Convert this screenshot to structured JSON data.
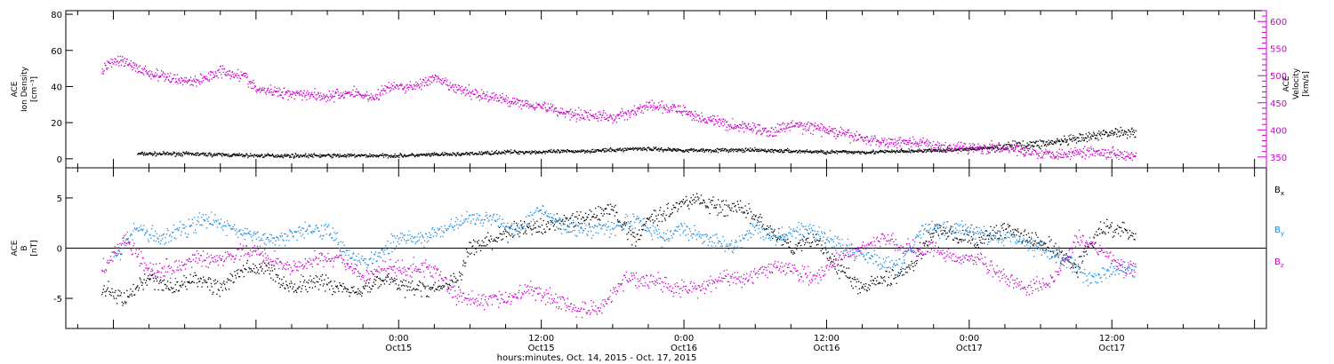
{
  "chart_data": [
    {
      "type": "scatter",
      "panel": "top",
      "ylabel_left": [
        "ACE",
        "Ion Density",
        "[cm⁻³]"
      ],
      "ylabel_right": [
        "ACE",
        "Velocity",
        "[km/s]"
      ],
      "ylim_left": [
        -5,
        82
      ],
      "yticks_left": [
        0,
        20,
        40,
        60,
        80
      ],
      "ylim_right": [
        330,
        620
      ],
      "yticks_right": [
        350,
        400,
        450,
        500,
        550,
        600
      ],
      "right_axis_color": "#cc00cc",
      "series": [
        {
          "axis": "left",
          "color": "#000000",
          "points": [
            [
              -22,
              3
            ],
            [
              -18,
              3
            ],
            [
              -12,
              2
            ],
            [
              -6,
              2
            ],
            [
              0,
              2
            ],
            [
              6,
              3
            ],
            [
              9,
              4
            ],
            [
              12,
              4
            ],
            [
              18,
              5
            ],
            [
              20,
              6
            ],
            [
              24,
              5
            ],
            [
              30,
              5
            ],
            [
              36,
              4
            ],
            [
              40,
              4
            ],
            [
              46,
              5
            ],
            [
              49,
              6
            ],
            [
              53,
              8
            ],
            [
              56,
              10
            ],
            [
              58,
              12
            ],
            [
              60,
              15
            ],
            [
              62,
              15
            ]
          ]
        },
        {
          "axis": "right",
          "color": "#cc00cc",
          "points": [
            [
              -25,
              510
            ],
            [
              -24,
              530
            ],
            [
              -23,
              525
            ],
            [
              -21,
              505
            ],
            [
              -19,
              495
            ],
            [
              -17,
              490
            ],
            [
              -15,
              510
            ],
            [
              -13,
              500
            ],
            [
              -12,
              475
            ],
            [
              -10,
              470
            ],
            [
              -8,
              468
            ],
            [
              -6,
              462
            ],
            [
              -4,
              470
            ],
            [
              -2,
              460
            ],
            [
              -1,
              480
            ],
            [
              1,
              480
            ],
            [
              3,
              495
            ],
            [
              5,
              475
            ],
            [
              8,
              460
            ],
            [
              10,
              452
            ],
            [
              12,
              445
            ],
            [
              14,
              432
            ],
            [
              16,
              428
            ],
            [
              18,
              423
            ],
            [
              19,
              430
            ],
            [
              21,
              445
            ],
            [
              23,
              440
            ],
            [
              24,
              435
            ],
            [
              25,
              425
            ],
            [
              27,
              415
            ],
            [
              28,
              408
            ],
            [
              30,
              405
            ],
            [
              31,
              395
            ],
            [
              33,
              410
            ],
            [
              35,
              405
            ],
            [
              37,
              395
            ],
            [
              39,
              385
            ],
            [
              41,
              378
            ],
            [
              43,
              380
            ],
            [
              45,
              370
            ],
            [
              48,
              368
            ],
            [
              50,
              368
            ],
            [
              52,
              365
            ],
            [
              54,
              358
            ],
            [
              56,
              356
            ],
            [
              58,
              362
            ],
            [
              60,
              358
            ],
            [
              62,
              354
            ]
          ]
        }
      ]
    },
    {
      "type": "scatter",
      "panel": "bottom",
      "ylabel": [
        "ACE",
        "B",
        "[nT]"
      ],
      "ylim": [
        -8,
        8
      ],
      "yticks": [
        -5,
        0,
        5
      ],
      "zero_line": true,
      "legend": [
        {
          "label": "B",
          "sub": "x",
          "color": "#000000"
        },
        {
          "label": "B",
          "sub": "y",
          "color": "#1a8ce0"
        },
        {
          "label": "B",
          "sub": "z",
          "color": "#cc00cc"
        }
      ],
      "series": [
        {
          "name": "Bx",
          "color": "#000000",
          "points": [
            [
              -25,
              -4
            ],
            [
              -23,
              -5
            ],
            [
              -21,
              -3
            ],
            [
              -19,
              -4
            ],
            [
              -17,
              -3
            ],
            [
              -15,
              -4
            ],
            [
              -13,
              -2
            ],
            [
              -11,
              -2
            ],
            [
              -9,
              -4
            ],
            [
              -7,
              -3
            ],
            [
              -5,
              -4
            ],
            [
              -3,
              -4
            ],
            [
              -1,
              -3
            ],
            [
              1,
              -4
            ],
            [
              3,
              -4
            ],
            [
              5,
              -3
            ],
            [
              6,
              0
            ],
            [
              8,
              1
            ],
            [
              10,
              2
            ],
            [
              12,
              2
            ],
            [
              14,
              3
            ],
            [
              16,
              3
            ],
            [
              18,
              4
            ],
            [
              19,
              2
            ],
            [
              20,
              1
            ],
            [
              21,
              3
            ],
            [
              23,
              4
            ],
            [
              25,
              5
            ],
            [
              27,
              4
            ],
            [
              29,
              4
            ],
            [
              31,
              2
            ],
            [
              33,
              0
            ],
            [
              35,
              1
            ],
            [
              37,
              -2
            ],
            [
              39,
              -4
            ],
            [
              41,
              -3
            ],
            [
              43,
              -2
            ],
            [
              44,
              0
            ],
            [
              45,
              2
            ],
            [
              47,
              1
            ],
            [
              49,
              1
            ],
            [
              51,
              2
            ],
            [
              53,
              1
            ],
            [
              55,
              0
            ],
            [
              57,
              -2
            ],
            [
              59,
              2
            ],
            [
              61,
              2
            ],
            [
              62,
              1
            ]
          ]
        },
        {
          "name": "By",
          "color": "#1a8ce0",
          "points": [
            [
              -24,
              -1
            ],
            [
              -22,
              2
            ],
            [
              -20,
              1
            ],
            [
              -18,
              2
            ],
            [
              -16,
              3
            ],
            [
              -14,
              2
            ],
            [
              -12,
              1
            ],
            [
              -10,
              1
            ],
            [
              -8,
              2
            ],
            [
              -6,
              2
            ],
            [
              -4,
              -1
            ],
            [
              -2,
              -1
            ],
            [
              0,
              1
            ],
            [
              2,
              1
            ],
            [
              4,
              2
            ],
            [
              6,
              3
            ],
            [
              8,
              3
            ],
            [
              10,
              2
            ],
            [
              12,
              4
            ],
            [
              14,
              2
            ],
            [
              16,
              2
            ],
            [
              18,
              2
            ],
            [
              20,
              3
            ],
            [
              22,
              1
            ],
            [
              24,
              2
            ],
            [
              26,
              1
            ],
            [
              28,
              0
            ],
            [
              30,
              2
            ],
            [
              32,
              1
            ],
            [
              34,
              2
            ],
            [
              36,
              1
            ],
            [
              38,
              0
            ],
            [
              40,
              -1
            ],
            [
              42,
              -2
            ],
            [
              44,
              2
            ],
            [
              46,
              2
            ],
            [
              48,
              2
            ],
            [
              50,
              1
            ],
            [
              52,
              1
            ],
            [
              54,
              0
            ],
            [
              56,
              -1
            ],
            [
              58,
              -3
            ],
            [
              60,
              -2
            ],
            [
              62,
              -2
            ]
          ]
        },
        {
          "name": "Bz",
          "color": "#cc00cc",
          "points": [
            [
              -25,
              -2
            ],
            [
              -23,
              1
            ],
            [
              -21,
              -2
            ],
            [
              -19,
              -2
            ],
            [
              -17,
              -1
            ],
            [
              -15,
              -1
            ],
            [
              -13,
              0
            ],
            [
              -11,
              -1
            ],
            [
              -9,
              -2
            ],
            [
              -7,
              -1
            ],
            [
              -5,
              -1
            ],
            [
              -3,
              -3
            ],
            [
              -1,
              -2
            ],
            [
              1,
              -2
            ],
            [
              3,
              -2
            ],
            [
              5,
              -5
            ],
            [
              7,
              -5
            ],
            [
              9,
              -5
            ],
            [
              11,
              -4
            ],
            [
              13,
              -5
            ],
            [
              15,
              -6
            ],
            [
              17,
              -6
            ],
            [
              19,
              -3
            ],
            [
              21,
              -3
            ],
            [
              23,
              -4
            ],
            [
              25,
              -4
            ],
            [
              27,
              -3
            ],
            [
              29,
              -3
            ],
            [
              31,
              -2
            ],
            [
              33,
              -2
            ],
            [
              35,
              -3
            ],
            [
              37,
              -1
            ],
            [
              39,
              0
            ],
            [
              41,
              1
            ],
            [
              43,
              0
            ],
            [
              45,
              0
            ],
            [
              47,
              -1
            ],
            [
              49,
              -1
            ],
            [
              51,
              -3
            ],
            [
              53,
              -4
            ],
            [
              55,
              -3
            ],
            [
              57,
              1
            ],
            [
              59,
              0
            ],
            [
              61,
              -2
            ],
            [
              62,
              -2
            ]
          ]
        }
      ]
    }
  ],
  "x_axis": {
    "xlim": [
      -28,
      73
    ],
    "ticks": [
      {
        "x": 0,
        "time": "0:00",
        "date": "Oct15"
      },
      {
        "x": 12,
        "time": "12:00",
        "date": "Oct15"
      },
      {
        "x": 24,
        "time": "0:00",
        "date": "Oct16"
      },
      {
        "x": 36,
        "time": "12:00",
        "date": "Oct16"
      },
      {
        "x": 48,
        "time": "0:00",
        "date": "Oct17"
      },
      {
        "x": 60,
        "time": "12:00",
        "date": "Oct17"
      }
    ],
    "minor_step": 3,
    "label": "hours:minutes, Oct. 14, 2015 - Oct. 17, 2015"
  }
}
